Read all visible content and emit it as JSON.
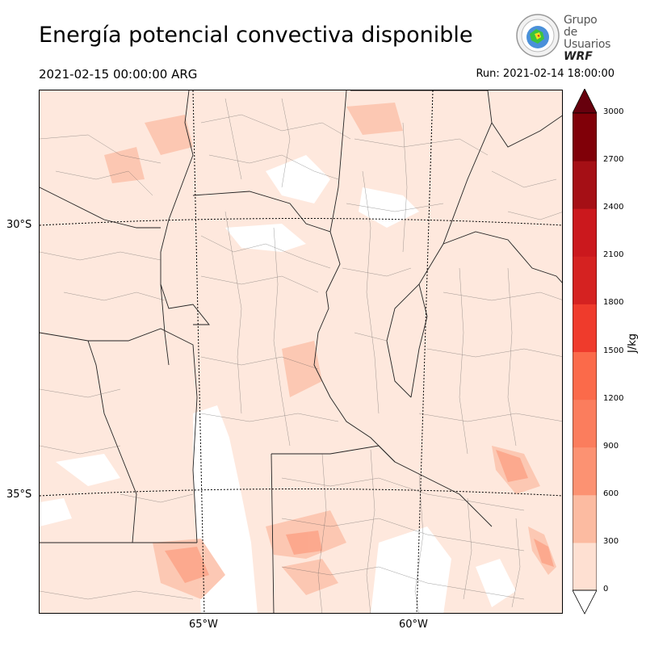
{
  "title": "Energía potencial convectiva disponible",
  "valid_time": "2021-02-15 00:00:00 ARG",
  "run_time": "Run: 2021-02-14 18:00:00",
  "logo": {
    "line1": "Grupo de",
    "line2": "Usuarios",
    "line3": "WRF"
  },
  "latitudes": [
    "30°S",
    "35°S"
  ],
  "longitudes": [
    "65°W",
    "60°W"
  ],
  "colorbar": {
    "unit": "J/kg",
    "ticks": [
      "0",
      "300",
      "600",
      "900",
      "1200",
      "1500",
      "1800",
      "2100",
      "2400",
      "2700",
      "3000"
    ],
    "colors": [
      "#fff5f0",
      "#fee0d2",
      "#fcbba1",
      "#fc9272",
      "#fb7d5d",
      "#fb6a4a",
      "#ef3b2c",
      "#d52221",
      "#cb181d",
      "#a50f15",
      "#800008"
    ],
    "under_color": "#ffffff",
    "over_color": "#67000d"
  }
}
